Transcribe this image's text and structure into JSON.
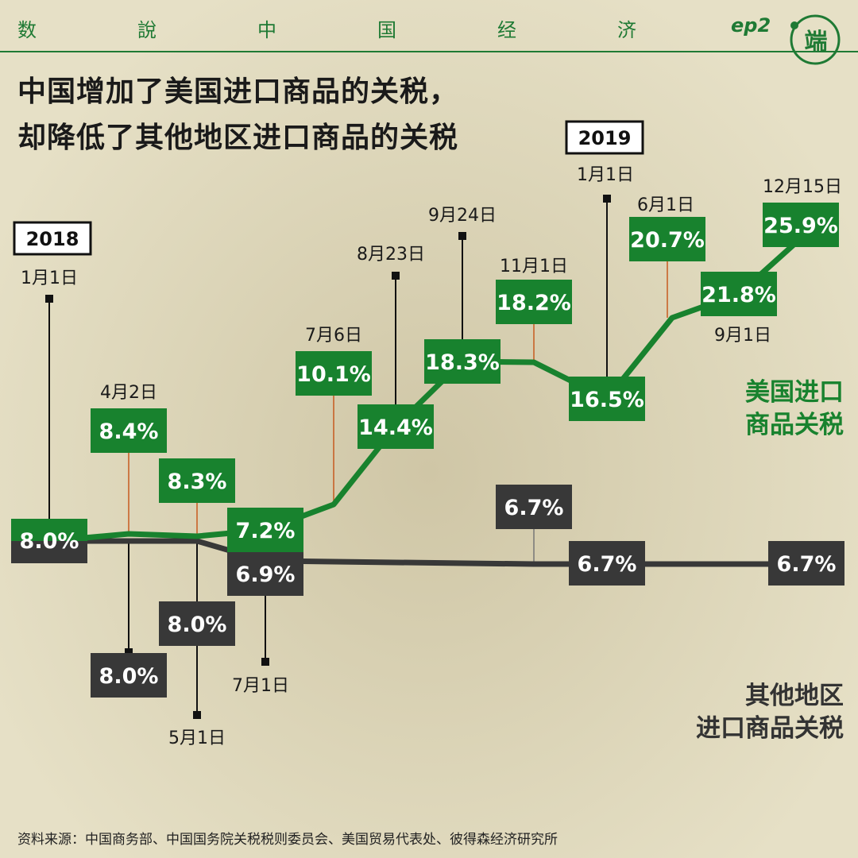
{
  "header": {
    "series_name": [
      "数",
      "說",
      "中",
      "国",
      "经",
      "济"
    ],
    "episode": "ep2",
    "logo_text": "端"
  },
  "title": {
    "line1": "中国增加了美国进口商品的关税，",
    "line2": "却降低了其他地区进口商品的关税"
  },
  "source": "资料来源：中国商务部、中国国务院关税税则委员会、美国贸易代表处、彼得森经济研究所",
  "colors": {
    "us": "#18822e",
    "other": "#383838",
    "accent": "#c75a1f",
    "background": "#ddd6ba"
  },
  "chart_data": {
    "type": "line",
    "years": [
      "2018",
      "2019"
    ],
    "series": [
      {
        "name": "美国进口商品关税",
        "dates": [
          "2018-01-01",
          "2018-04-02",
          "2018-05-01",
          "2018-07-01",
          "2018-07-06",
          "2018-08-23",
          "2018-09-24",
          "2018-11-01",
          "2019-01-01",
          "2019-06-01",
          "2019-09-01",
          "2019-12-15"
        ],
        "labels": [
          "1月1日",
          "4月2日",
          "",
          "",
          "7月6日",
          "8月23日",
          "9月24日",
          "11月1日",
          "1月1日",
          "6月1日",
          "9月1日",
          "12月15日"
        ],
        "values": [
          "8.0%",
          "8.4%",
          "8.3%",
          "7.2%",
          "10.1%",
          "14.4%",
          "18.3%",
          "18.2%",
          "16.5%",
          "20.7%",
          "21.8%",
          "25.9%"
        ]
      },
      {
        "name": "其他地区进口商品关税",
        "dates": [
          "2018-01-01",
          "2018-04-02",
          "2018-05-01",
          "2018-07-01",
          "2018-11-01",
          "2019-01-01",
          "2019-12-15"
        ],
        "labels": [
          "",
          "",
          "5月1日",
          "7月1日",
          "",
          "",
          ""
        ],
        "values": [
          "",
          "8.0%",
          "8.0%",
          "6.9%",
          "6.7%",
          "6.7%",
          "6.7%"
        ]
      }
    ]
  },
  "series_labels": {
    "us": [
      "美国进口",
      "商品关税"
    ],
    "other": [
      "其他地区",
      "进口商品关税"
    ]
  }
}
